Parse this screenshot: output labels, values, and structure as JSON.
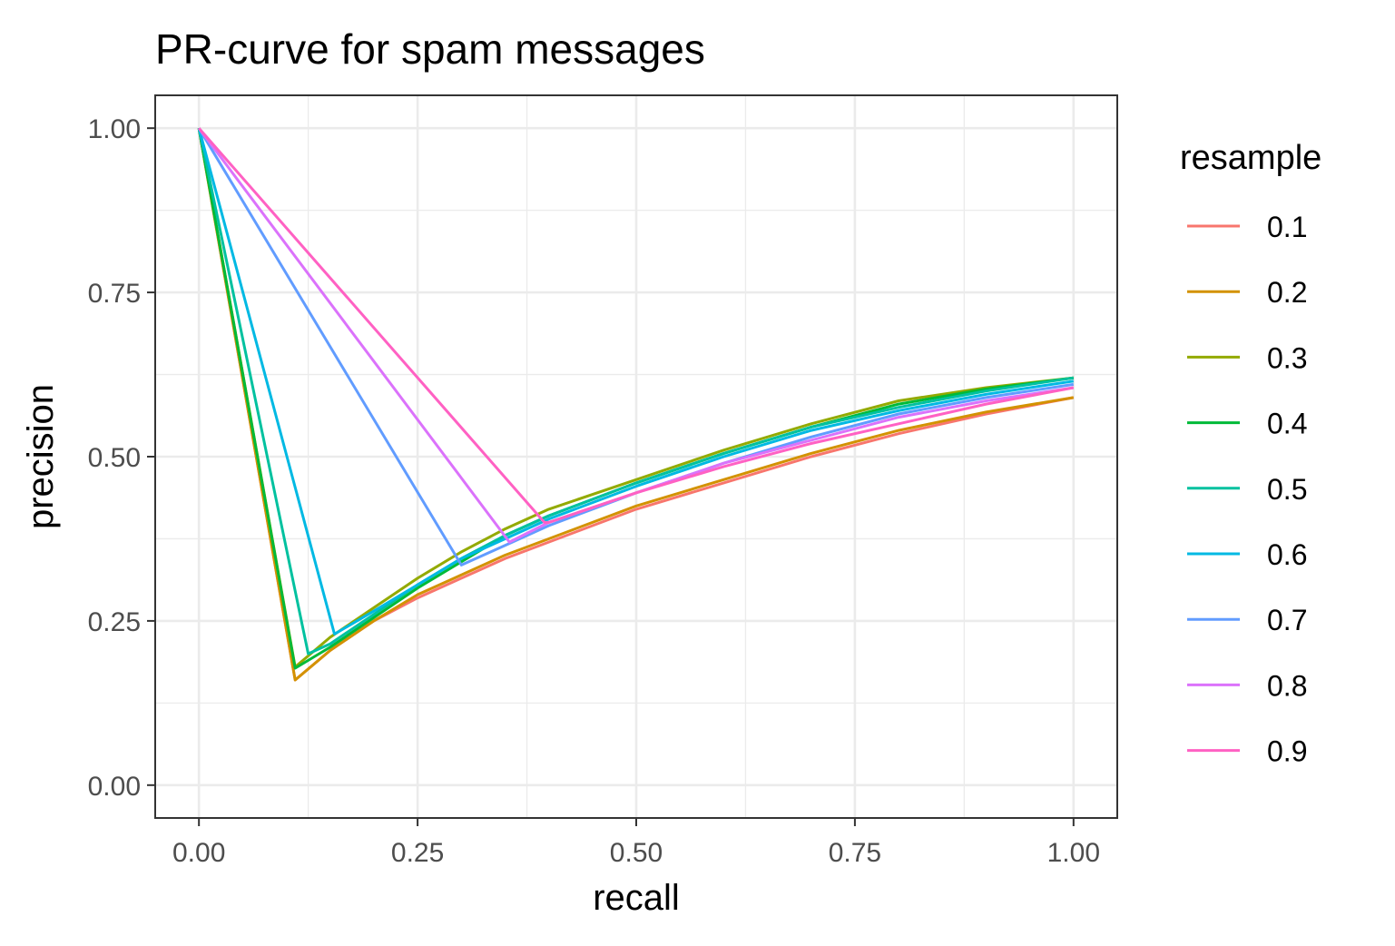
{
  "chart_data": {
    "type": "line",
    "title": "PR-curve for spam messages",
    "xlabel": "recall",
    "ylabel": "precision",
    "xlim": [
      -0.05,
      1.05
    ],
    "ylim": [
      -0.05,
      1.05
    ],
    "x_ticks": [
      0,
      0.25,
      0.5,
      0.75,
      1
    ],
    "x_tick_labels": [
      "0.00",
      "0.25",
      "0.50",
      "0.75",
      "1.00"
    ],
    "y_ticks": [
      0,
      0.25,
      0.5,
      0.75,
      1
    ],
    "y_tick_labels": [
      "0.00",
      "0.25",
      "0.50",
      "0.75",
      "1.00"
    ],
    "grid": true,
    "legend": {
      "title": "resample",
      "position": "right"
    },
    "series": [
      {
        "name": "0.1",
        "color": "#F8766D",
        "x": [
          0,
          0.11,
          0.15,
          0.2,
          0.25,
          0.3,
          0.35,
          0.4,
          0.5,
          0.6,
          0.7,
          0.8,
          0.9,
          1.0
        ],
        "y": [
          1.0,
          0.16,
          0.205,
          0.25,
          0.285,
          0.315,
          0.345,
          0.37,
          0.42,
          0.46,
          0.5,
          0.535,
          0.565,
          0.59
        ]
      },
      {
        "name": "0.2",
        "color": "#D39200",
        "x": [
          0,
          0.11,
          0.15,
          0.2,
          0.25,
          0.3,
          0.35,
          0.4,
          0.5,
          0.6,
          0.7,
          0.8,
          0.9,
          1.0
        ],
        "y": [
          1.0,
          0.16,
          0.205,
          0.25,
          0.29,
          0.32,
          0.35,
          0.375,
          0.425,
          0.465,
          0.505,
          0.54,
          0.568,
          0.59
        ]
      },
      {
        "name": "0.3",
        "color": "#93AA00",
        "x": [
          0,
          0.11,
          0.15,
          0.2,
          0.25,
          0.3,
          0.35,
          0.4,
          0.5,
          0.6,
          0.7,
          0.8,
          0.9,
          1.0
        ],
        "y": [
          1.0,
          0.18,
          0.225,
          0.27,
          0.315,
          0.355,
          0.39,
          0.42,
          0.465,
          0.51,
          0.55,
          0.585,
          0.605,
          0.62
        ]
      },
      {
        "name": "0.4",
        "color": "#00BA38",
        "x": [
          0,
          0.11,
          0.15,
          0.2,
          0.25,
          0.3,
          0.35,
          0.4,
          0.5,
          0.6,
          0.7,
          0.8,
          0.9,
          1.0
        ],
        "y": [
          1.0,
          0.178,
          0.21,
          0.255,
          0.3,
          0.34,
          0.38,
          0.41,
          0.46,
          0.505,
          0.545,
          0.58,
          0.603,
          0.62
        ]
      },
      {
        "name": "0.5",
        "color": "#00C19F",
        "x": [
          0,
          0.125,
          0.15,
          0.2,
          0.25,
          0.3,
          0.35,
          0.4,
          0.5,
          0.6,
          0.7,
          0.8,
          0.9,
          1.0
        ],
        "y": [
          1.0,
          0.2,
          0.215,
          0.26,
          0.305,
          0.345,
          0.38,
          0.41,
          0.46,
          0.505,
          0.545,
          0.575,
          0.6,
          0.62
        ]
      },
      {
        "name": "0.6",
        "color": "#00B9E3",
        "x": [
          0,
          0.155,
          0.2,
          0.25,
          0.3,
          0.35,
          0.4,
          0.5,
          0.6,
          0.7,
          0.8,
          0.9,
          1.0
        ],
        "y": [
          1.0,
          0.23,
          0.265,
          0.305,
          0.345,
          0.375,
          0.405,
          0.455,
          0.5,
          0.54,
          0.57,
          0.595,
          0.615
        ]
      },
      {
        "name": "0.7",
        "color": "#619CFF",
        "x": [
          0,
          0.3,
          0.35,
          0.4,
          0.5,
          0.6,
          0.7,
          0.8,
          0.9,
          1.0
        ],
        "y": [
          1.0,
          0.335,
          0.365,
          0.395,
          0.445,
          0.49,
          0.53,
          0.565,
          0.59,
          0.61
        ]
      },
      {
        "name": "0.8",
        "color": "#DB72FB",
        "x": [
          0,
          0.355,
          0.4,
          0.5,
          0.6,
          0.7,
          0.8,
          0.9,
          1.0
        ],
        "y": [
          1.0,
          0.37,
          0.4,
          0.445,
          0.49,
          0.525,
          0.56,
          0.585,
          0.605
        ]
      },
      {
        "name": "0.9",
        "color": "#FF61C3",
        "x": [
          0,
          0.395,
          0.4,
          0.5,
          0.6,
          0.7,
          0.8,
          0.9,
          1.0
        ],
        "y": [
          1.0,
          0.4,
          0.4,
          0.445,
          0.485,
          0.52,
          0.55,
          0.58,
          0.605
        ]
      }
    ]
  }
}
